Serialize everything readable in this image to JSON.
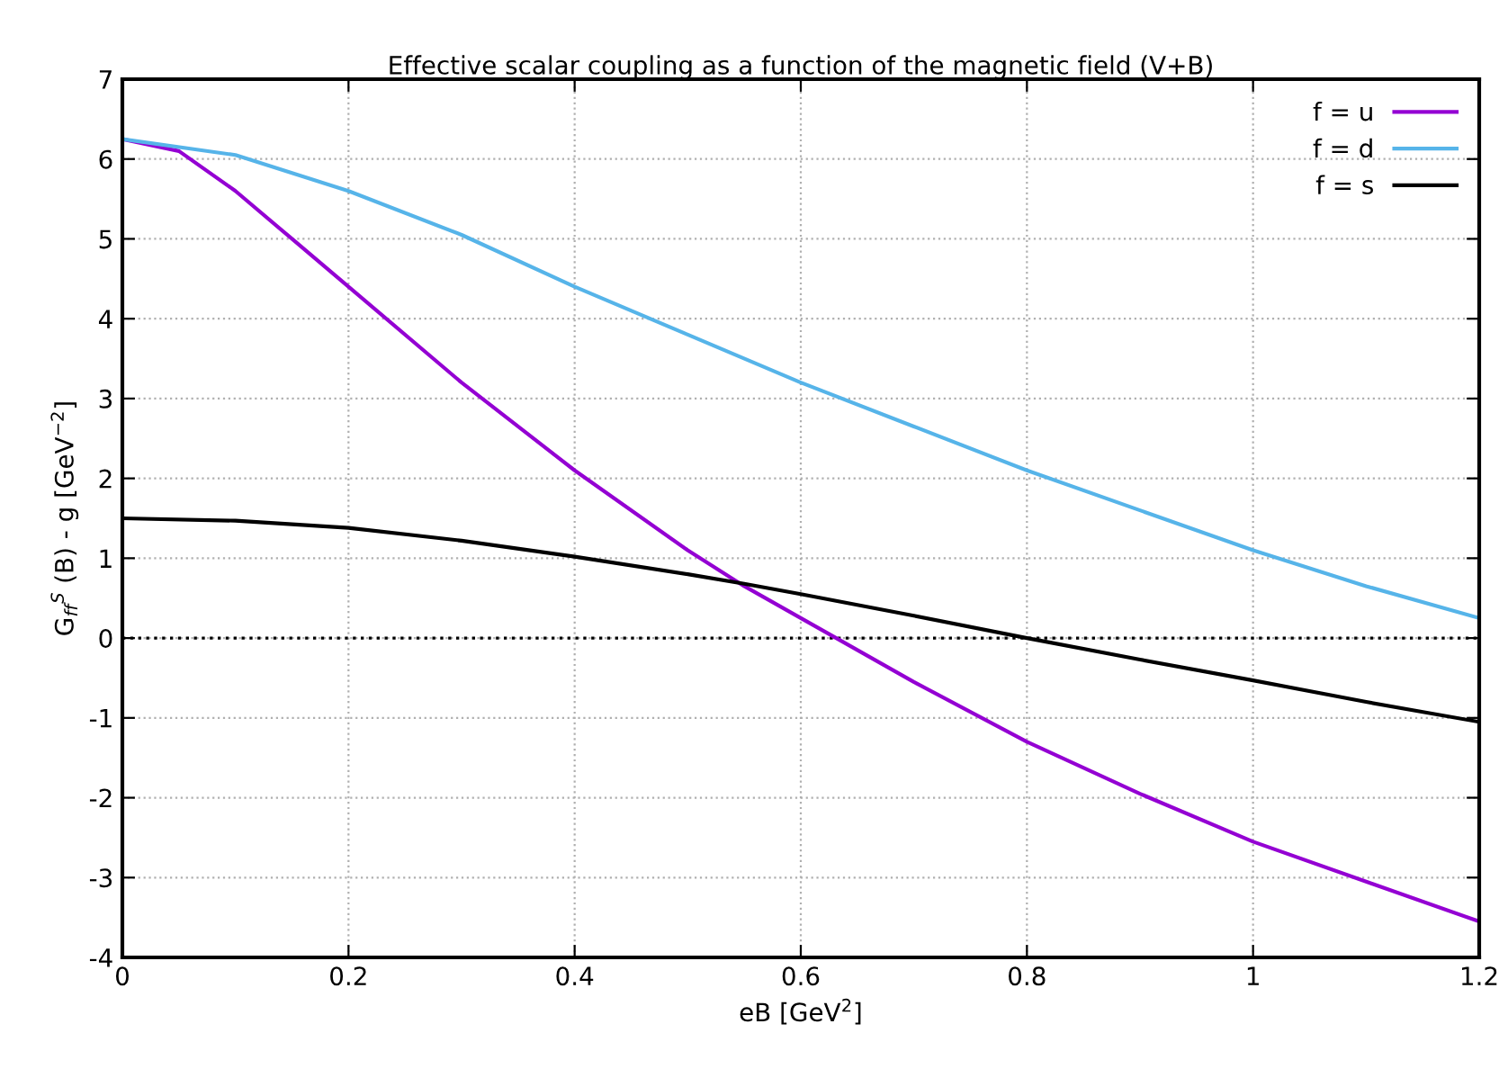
{
  "chart_data": {
    "type": "line",
    "title": "Effective scalar coupling as a function of the magnetic field (V+B)",
    "xlabel": "eB [GeV$^{2}$]",
    "ylabel": "G$_{ff}$$^{S}$ (B) - g [GeV$^{−2}$]",
    "xlim": [
      0,
      1.2
    ],
    "ylim": [
      -4,
      7
    ],
    "xticks": [
      0,
      0.2,
      0.4,
      0.6,
      0.8,
      1,
      1.2
    ],
    "yticks": [
      -4,
      -3,
      -2,
      -1,
      0,
      1,
      2,
      3,
      4,
      5,
      6,
      7
    ],
    "grid": true,
    "legend": "top right",
    "line_style": "solid",
    "marker": "none",
    "ref_lines": [
      {
        "axis": "y",
        "value": 0,
        "color": "#000000",
        "line_style": "dotted"
      }
    ],
    "series": [
      {
        "name": "f = u",
        "color": "#9400d3",
        "x": [
          0,
          0.05,
          0.1,
          0.15,
          0.2,
          0.3,
          0.4,
          0.5,
          0.55,
          0.6,
          0.7,
          0.8,
          0.9,
          1.0,
          1.1,
          1.2
        ],
        "values": [
          6.25,
          6.1,
          5.6,
          5.0,
          4.4,
          3.2,
          2.1,
          1.1,
          0.65,
          0.25,
          -0.55,
          -1.3,
          -1.95,
          -2.55,
          -3.05,
          -3.55
        ]
      },
      {
        "name": "f = d",
        "color": "#56b4e9",
        "x": [
          0,
          0.1,
          0.2,
          0.3,
          0.4,
          0.5,
          0.6,
          0.7,
          0.8,
          0.9,
          1.0,
          1.1,
          1.2
        ],
        "values": [
          6.25,
          6.05,
          5.6,
          5.05,
          4.4,
          3.8,
          3.2,
          2.65,
          2.1,
          1.6,
          1.1,
          0.65,
          0.25
        ]
      },
      {
        "name": "f = s",
        "color": "#000000",
        "x": [
          0,
          0.1,
          0.2,
          0.3,
          0.4,
          0.5,
          0.55,
          0.6,
          0.7,
          0.8,
          0.9,
          1.0,
          1.1,
          1.2
        ],
        "values": [
          1.5,
          1.47,
          1.38,
          1.22,
          1.02,
          0.8,
          0.68,
          0.55,
          0.28,
          0.0,
          -0.27,
          -0.53,
          -0.8,
          -1.05
        ]
      }
    ]
  }
}
